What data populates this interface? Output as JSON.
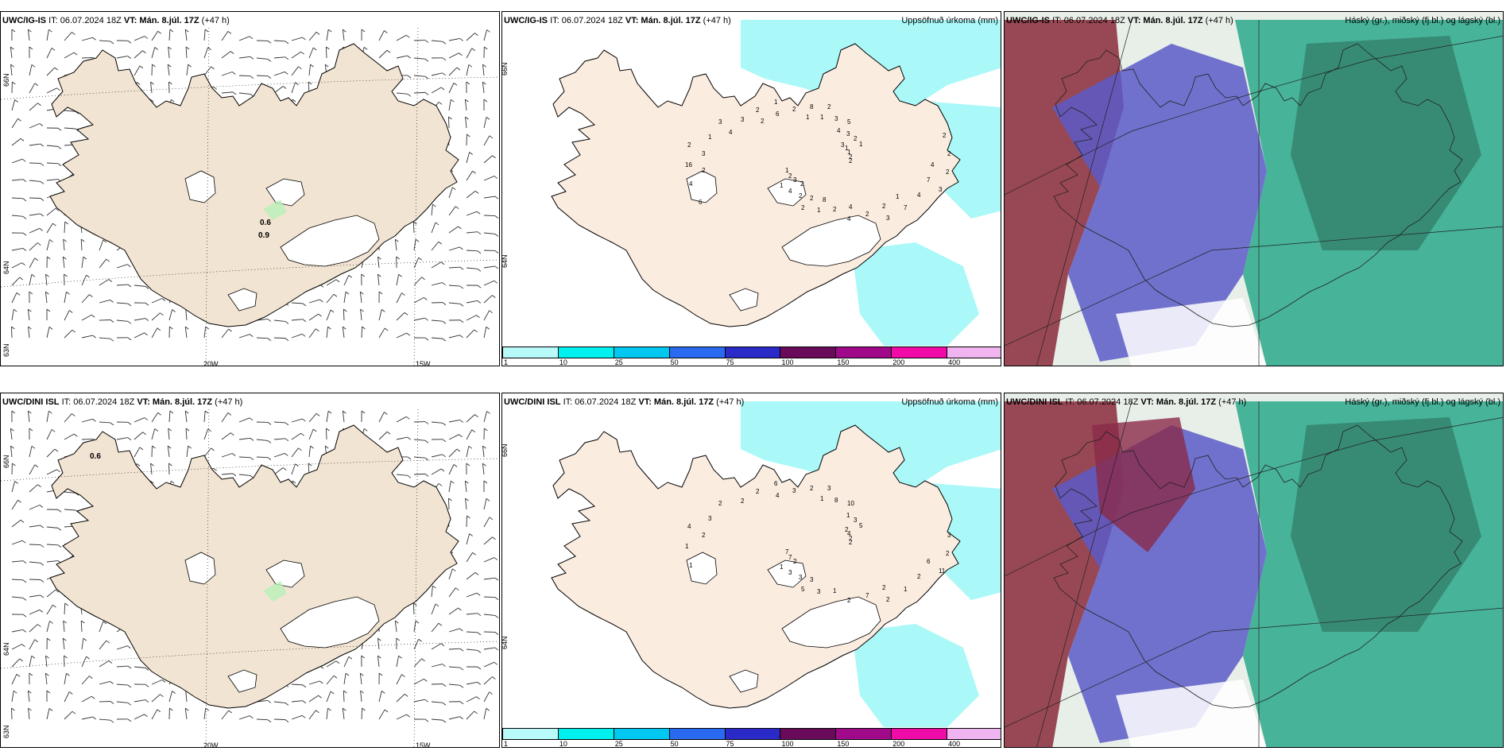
{
  "rows": [
    {
      "model": "UWC/IG-IS",
      "issue_label": "IT: 06.07.2024 18Z",
      "valid_label": "VT: Mán. 8.júl. 17Z",
      "lead": "(+47 h)",
      "wind_panel": {
        "lon_labels": [
          "20W",
          "15W"
        ],
        "lat_labels": [
          "66N",
          "64N",
          "63N"
        ],
        "values": [
          "0.6",
          "0.9"
        ]
      },
      "precip_panel": {
        "title": "Uppsöfnuð úrkoma (mm)",
        "lat_labels": [
          "66N",
          "64N"
        ],
        "numbers": [
          "2",
          "1",
          "2",
          "3",
          "2",
          "1",
          "2",
          "1",
          "3",
          "1",
          "5",
          "4",
          "3",
          "2",
          "4",
          "8",
          "7",
          "16",
          "2",
          "1",
          "2",
          "2",
          "2",
          "3",
          "2",
          "1",
          "1",
          "2",
          "2",
          "4",
          "4",
          "3",
          "2",
          "3",
          "2",
          "3",
          "1",
          "2",
          "3",
          "1",
          "2",
          "6",
          "7",
          "6",
          "4",
          "4",
          "4",
          "2",
          "2",
          "1",
          "1",
          "2",
          "3",
          "8",
          "2",
          "4"
        ]
      },
      "cloud_panel": {
        "title": "Háský (gr.), miðský (fj.bl.) og lágský (bl.)"
      }
    },
    {
      "model": "UWC/DINI ISL",
      "issue_label": "IT: 06.07.2024 18Z",
      "valid_label": "VT: Mán. 8.júl. 17Z",
      "lead": "(+47 h)",
      "wind_panel": {
        "lon_labels": [
          "20W",
          "15W"
        ],
        "lat_labels": [
          "66N",
          "64N",
          "63N"
        ],
        "values": [
          "0.6"
        ]
      },
      "precip_panel": {
        "title": "Uppsöfnuð úrkoma (mm)",
        "lat_labels": [
          "66N",
          "64N"
        ],
        "numbers": [
          "2",
          "1",
          "3",
          "2",
          "4",
          "5",
          "5",
          "6",
          "11",
          "7",
          "10",
          "2",
          "2",
          "2",
          "3",
          "2",
          "1",
          "1",
          "3",
          "3",
          "2",
          "2",
          "7",
          "8",
          "7",
          "3",
          "4",
          "3",
          "3",
          "2",
          "1",
          "1",
          "1",
          "2",
          "3",
          "2",
          "1",
          "2",
          "2",
          "2",
          "3",
          "4",
          "6"
        ]
      },
      "cloud_panel": {
        "title": "Háský (gr.), miðský (fj.bl.) og lágský (bl.)"
      }
    }
  ],
  "colorbar": {
    "ticks": [
      "1",
      "10",
      "25",
      "50",
      "75",
      "100",
      "150",
      "200",
      "400"
    ],
    "colors": [
      "#b8fafa",
      "#00f0f0",
      "#00c8f0",
      "#2a6af0",
      "#2a2ac8",
      "#6a0a5a",
      "#a00a8a",
      "#f00aa8",
      "#f0b4f0"
    ]
  },
  "colors": {
    "land": "#f2e4d2",
    "land_precip": "#fbece0",
    "precip_light": "#aaf8f8",
    "cloud_low": "#5a5ac8",
    "cloud_mid": "#2aa88a",
    "cloud_high": "#8a2a3a"
  }
}
